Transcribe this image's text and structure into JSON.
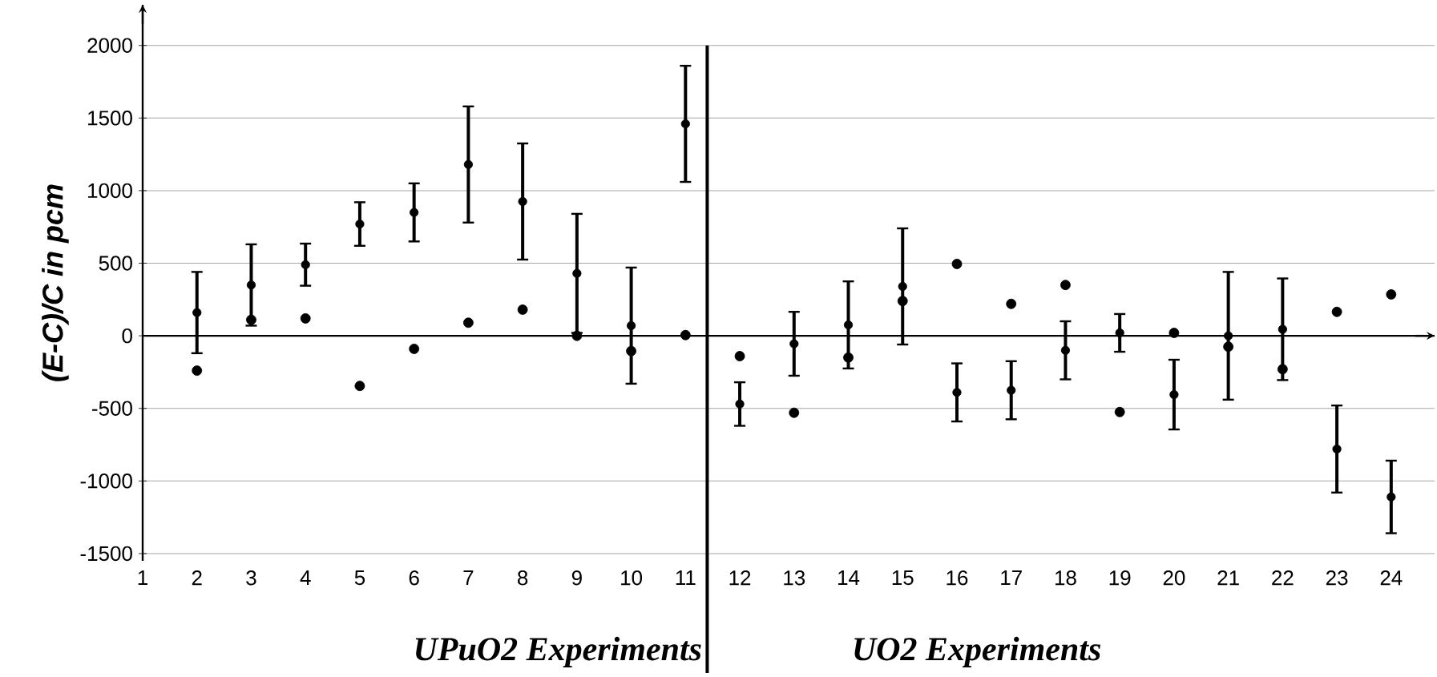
{
  "chart_data": {
    "type": "scatter",
    "ylabel": "(E-C)/C in pcm",
    "x": [
      2,
      3,
      4,
      5,
      6,
      7,
      8,
      9,
      10,
      11,
      12,
      13,
      14,
      15,
      16,
      17,
      18,
      19,
      20,
      21,
      22,
      23,
      24
    ],
    "xlim": [
      1,
      24.8
    ],
    "xticks": [
      1,
      2,
      3,
      4,
      5,
      6,
      7,
      8,
      9,
      10,
      11,
      12,
      13,
      14,
      15,
      16,
      17,
      18,
      19,
      20,
      21,
      22,
      23,
      24
    ],
    "ylim": [
      -1550,
      2280
    ],
    "yticks": [
      -1500,
      -1000,
      -500,
      0,
      500,
      1000,
      1500,
      2000
    ],
    "grid": "y",
    "marker": "circle",
    "series": [
      {
        "color": "#000000",
        "values": [
          160,
          350,
          490,
          770,
          850,
          1180,
          925,
          430,
          70,
          1460,
          -470,
          -55,
          75,
          340,
          -390,
          -375,
          -100,
          20,
          -405,
          0,
          45,
          -780,
          -1110
        ],
        "errors": [
          280,
          280,
          145,
          150,
          200,
          400,
          400,
          410,
          400,
          400,
          150,
          220,
          300,
          400,
          200,
          200,
          200,
          130,
          240,
          440,
          350,
          300,
          250
        ]
      },
      {
        "color": "#000000",
        "values": [
          -240,
          110,
          120,
          -345,
          -90,
          90,
          180,
          0,
          -105,
          5,
          -140,
          -530,
          -150,
          240,
          495,
          220,
          350,
          -525,
          20,
          -75,
          -230,
          165,
          285
        ]
      }
    ],
    "ref_lines": [
      {
        "axis": "x",
        "value": 11.4,
        "color": "#000000"
      }
    ],
    "annotations": [
      "UPuO2 Experiments",
      "UO2 Experiments"
    ]
  }
}
